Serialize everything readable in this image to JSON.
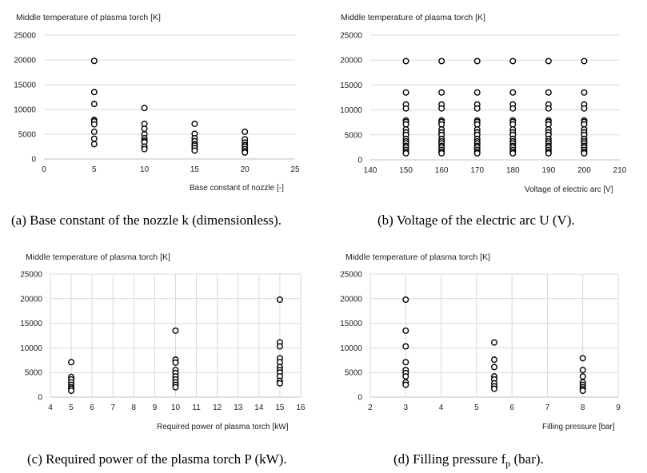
{
  "chart_data": [
    {
      "type": "scatter",
      "panel": "a",
      "ylabel": "Middle temperature of plasma torch [K]",
      "xlabel": "Base constant of nozzle [-]",
      "caption": "(a) Base constant of the nozzle k (dimensionless).",
      "xlim": [
        0,
        25
      ],
      "xticks": [
        0,
        5,
        10,
        15,
        20,
        25
      ],
      "ylim": [
        0,
        25000
      ],
      "yticks": [
        0,
        5000,
        10000,
        15000,
        20000,
        25000
      ],
      "vgrid": false,
      "points": [
        [
          5,
          19800
        ],
        [
          5,
          13500
        ],
        [
          5,
          11100
        ],
        [
          5,
          7900
        ],
        [
          5,
          7600
        ],
        [
          5,
          7000
        ],
        [
          5,
          5500
        ],
        [
          5,
          4100
        ],
        [
          5,
          3000
        ],
        [
          10,
          10300
        ],
        [
          10,
          7100
        ],
        [
          10,
          6100
        ],
        [
          10,
          5000
        ],
        [
          10,
          4200
        ],
        [
          10,
          3700
        ],
        [
          10,
          3400
        ],
        [
          10,
          2500
        ],
        [
          10,
          2000
        ],
        [
          15,
          7100
        ],
        [
          15,
          5100
        ],
        [
          15,
          4200
        ],
        [
          15,
          3600
        ],
        [
          15,
          3000
        ],
        [
          15,
          2700
        ],
        [
          15,
          2200
        ],
        [
          15,
          1700
        ],
        [
          20,
          5500
        ],
        [
          20,
          4000
        ],
        [
          20,
          3300
        ],
        [
          20,
          2800
        ],
        [
          20,
          2500
        ],
        [
          20,
          2000
        ],
        [
          20,
          1600
        ],
        [
          20,
          1300
        ]
      ]
    },
    {
      "type": "scatter",
      "panel": "b",
      "ylabel": "Middle temperature of plasma torch [K]",
      "xlabel": "Voltage of electric arc [V]",
      "caption": "(b) Voltage of the electric arc U (V).",
      "xlim": [
        140,
        210
      ],
      "xticks": [
        140,
        150,
        160,
        170,
        180,
        190,
        200,
        210
      ],
      "ylim": [
        0,
        25000
      ],
      "yticks": [
        0,
        5000,
        10000,
        15000,
        20000,
        25000
      ],
      "vgrid": false,
      "points": [
        [
          150,
          19800
        ],
        [
          150,
          13500
        ],
        [
          150,
          11100
        ],
        [
          150,
          10300
        ],
        [
          150,
          7900
        ],
        [
          150,
          7600
        ],
        [
          150,
          7100
        ],
        [
          150,
          6100
        ],
        [
          150,
          5500
        ],
        [
          150,
          5000
        ],
        [
          150,
          4200
        ],
        [
          150,
          3700
        ],
        [
          150,
          3300
        ],
        [
          150,
          2800
        ],
        [
          150,
          2500
        ],
        [
          150,
          2000
        ],
        [
          150,
          1600
        ],
        [
          150,
          1300
        ],
        [
          160,
          19800
        ],
        [
          160,
          13500
        ],
        [
          160,
          11100
        ],
        [
          160,
          10300
        ],
        [
          160,
          7900
        ],
        [
          160,
          7600
        ],
        [
          160,
          7100
        ],
        [
          160,
          6100
        ],
        [
          160,
          5500
        ],
        [
          160,
          5000
        ],
        [
          160,
          4200
        ],
        [
          160,
          3700
        ],
        [
          160,
          3300
        ],
        [
          160,
          2800
        ],
        [
          160,
          2500
        ],
        [
          160,
          2000
        ],
        [
          160,
          1600
        ],
        [
          160,
          1300
        ],
        [
          170,
          19800
        ],
        [
          170,
          13500
        ],
        [
          170,
          11100
        ],
        [
          170,
          10300
        ],
        [
          170,
          7900
        ],
        [
          170,
          7600
        ],
        [
          170,
          7100
        ],
        [
          170,
          6100
        ],
        [
          170,
          5500
        ],
        [
          170,
          5000
        ],
        [
          170,
          4200
        ],
        [
          170,
          3700
        ],
        [
          170,
          3300
        ],
        [
          170,
          2800
        ],
        [
          170,
          2500
        ],
        [
          170,
          2000
        ],
        [
          170,
          1600
        ],
        [
          170,
          1300
        ],
        [
          180,
          19800
        ],
        [
          180,
          13500
        ],
        [
          180,
          11100
        ],
        [
          180,
          10300
        ],
        [
          180,
          7900
        ],
        [
          180,
          7600
        ],
        [
          180,
          7100
        ],
        [
          180,
          6100
        ],
        [
          180,
          5500
        ],
        [
          180,
          5000
        ],
        [
          180,
          4200
        ],
        [
          180,
          3700
        ],
        [
          180,
          3300
        ],
        [
          180,
          2800
        ],
        [
          180,
          2500
        ],
        [
          180,
          2000
        ],
        [
          180,
          1600
        ],
        [
          180,
          1300
        ],
        [
          190,
          19800
        ],
        [
          190,
          13500
        ],
        [
          190,
          11100
        ],
        [
          190,
          10300
        ],
        [
          190,
          7900
        ],
        [
          190,
          7600
        ],
        [
          190,
          7100
        ],
        [
          190,
          6100
        ],
        [
          190,
          5500
        ],
        [
          190,
          5000
        ],
        [
          190,
          4200
        ],
        [
          190,
          3700
        ],
        [
          190,
          3300
        ],
        [
          190,
          2800
        ],
        [
          190,
          2500
        ],
        [
          190,
          2000
        ],
        [
          190,
          1600
        ],
        [
          190,
          1300
        ],
        [
          200,
          19800
        ],
        [
          200,
          13500
        ],
        [
          200,
          11100
        ],
        [
          200,
          10300
        ],
        [
          200,
          7900
        ],
        [
          200,
          7600
        ],
        [
          200,
          7100
        ],
        [
          200,
          6100
        ],
        [
          200,
          5500
        ],
        [
          200,
          5000
        ],
        [
          200,
          4200
        ],
        [
          200,
          3700
        ],
        [
          200,
          3300
        ],
        [
          200,
          2800
        ],
        [
          200,
          2500
        ],
        [
          200,
          2000
        ],
        [
          200,
          1600
        ],
        [
          200,
          1300
        ]
      ]
    },
    {
      "type": "scatter",
      "panel": "c",
      "ylabel": "Middle temperature of plasma torch [K]",
      "xlabel": "Required power of plasma torch [kW]",
      "caption": "(c) Required power of the plasma torch P (kW).",
      "xlim": [
        4,
        16
      ],
      "xticks": [
        4,
        5,
        6,
        7,
        8,
        9,
        10,
        11,
        12,
        13,
        14,
        15,
        16
      ],
      "ylim": [
        0,
        25000
      ],
      "yticks": [
        0,
        5000,
        10000,
        15000,
        20000,
        25000
      ],
      "vgrid": true,
      "points": [
        [
          5,
          7100
        ],
        [
          5,
          4100
        ],
        [
          5,
          3600
        ],
        [
          5,
          3000
        ],
        [
          5,
          2500
        ],
        [
          5,
          2000
        ],
        [
          5,
          1700
        ],
        [
          5,
          1300
        ],
        [
          10,
          13500
        ],
        [
          10,
          7600
        ],
        [
          10,
          7000
        ],
        [
          10,
          5500
        ],
        [
          10,
          4900
        ],
        [
          10,
          4200
        ],
        [
          10,
          3600
        ],
        [
          10,
          3000
        ],
        [
          10,
          2500
        ],
        [
          10,
          2000
        ],
        [
          15,
          19800
        ],
        [
          15,
          11100
        ],
        [
          15,
          10300
        ],
        [
          15,
          7900
        ],
        [
          15,
          7100
        ],
        [
          15,
          6100
        ],
        [
          15,
          5500
        ],
        [
          15,
          5000
        ],
        [
          15,
          4200
        ],
        [
          15,
          3300
        ],
        [
          15,
          2800
        ]
      ]
    },
    {
      "type": "scatter",
      "panel": "d",
      "ylabel": "Middle temperature of plasma torch [K]",
      "xlabel": "Filling pressure [bar]",
      "caption_main": "(d) Filling pressure f",
      "caption_sub": "p",
      "caption_end": " (bar).",
      "xlim": [
        2,
        9
      ],
      "xticks": [
        2,
        3,
        4,
        5,
        6,
        7,
        8,
        9
      ],
      "ylim": [
        0,
        25000
      ],
      "yticks": [
        0,
        5000,
        10000,
        15000,
        20000,
        25000
      ],
      "vgrid": true,
      "points": [
        [
          3,
          19800
        ],
        [
          3,
          13500
        ],
        [
          3,
          10300
        ],
        [
          3,
          7100
        ],
        [
          3,
          5500
        ],
        [
          3,
          4900
        ],
        [
          3,
          4200
        ],
        [
          3,
          3000
        ],
        [
          3,
          2500
        ],
        [
          5.5,
          11100
        ],
        [
          5.5,
          7600
        ],
        [
          5.5,
          6100
        ],
        [
          5.5,
          4200
        ],
        [
          5.5,
          3600
        ],
        [
          5.5,
          2800
        ],
        [
          5.5,
          2200
        ],
        [
          5.5,
          1700
        ],
        [
          8,
          7900
        ],
        [
          8,
          5500
        ],
        [
          8,
          4200
        ],
        [
          8,
          3000
        ],
        [
          8,
          2500
        ],
        [
          8,
          2000
        ],
        [
          8,
          1600
        ],
        [
          8,
          1300
        ]
      ]
    }
  ]
}
